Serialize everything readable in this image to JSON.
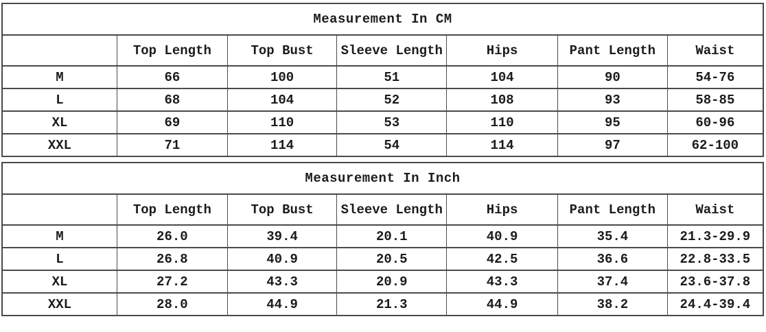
{
  "colors": {
    "background": "#ffffff",
    "border": "#4a4a4a",
    "text": "#1b1b1b"
  },
  "tables": [
    {
      "title": "Measurement In CM",
      "columns": [
        "",
        "Top Length",
        "Top Bust",
        "Sleeve Length",
        "Hips",
        "Pant Length",
        "Waist"
      ],
      "rows": [
        {
          "size": "M",
          "values": [
            "66",
            "100",
            "51",
            "104",
            "90",
            "54-76"
          ]
        },
        {
          "size": "L",
          "values": [
            "68",
            "104",
            "52",
            "108",
            "93",
            "58-85"
          ]
        },
        {
          "size": "XL",
          "values": [
            "69",
            "110",
            "53",
            "110",
            "95",
            "60-96"
          ]
        },
        {
          "size": "XXL",
          "values": [
            "71",
            "114",
            "54",
            "114",
            "97",
            "62-100"
          ]
        }
      ]
    },
    {
      "title": "Measurement In Inch",
      "columns": [
        "",
        "Top Length",
        "Top Bust",
        "Sleeve Length",
        "Hips",
        "Pant Length",
        "Waist"
      ],
      "rows": [
        {
          "size": "M",
          "values": [
            "26.0",
            "39.4",
            "20.1",
            "40.9",
            "35.4",
            "21.3-29.9"
          ]
        },
        {
          "size": "L",
          "values": [
            "26.8",
            "40.9",
            "20.5",
            "42.5",
            "36.6",
            "22.8-33.5"
          ]
        },
        {
          "size": "XL",
          "values": [
            "27.2",
            "43.3",
            "20.9",
            "43.3",
            "37.4",
            "23.6-37.8"
          ]
        },
        {
          "size": "XXL",
          "values": [
            "28.0",
            "44.9",
            "21.3",
            "44.9",
            "38.2",
            "24.4-39.4"
          ]
        }
      ]
    }
  ]
}
